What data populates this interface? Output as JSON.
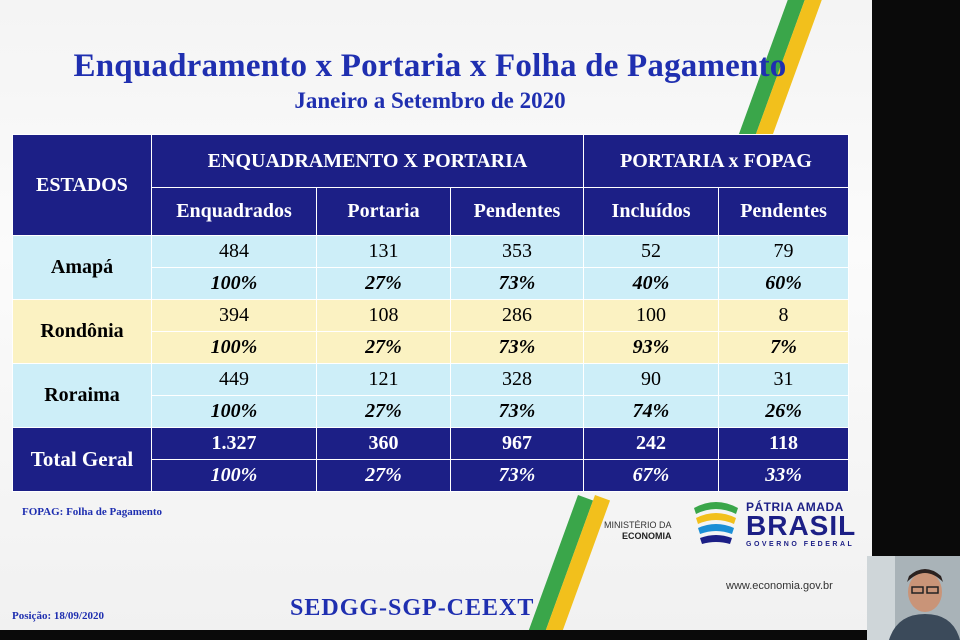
{
  "slide": {
    "title": "Enquadramento x Portaria x Folha de Pagamento",
    "subtitle": "Janeiro a Setembro de 2020",
    "footnote": "FOPAG: Folha de Pagamento",
    "position_date": "Posição: 18/09/2020",
    "code": "SEDGG-SGP-CEEXT",
    "ministry_line1": "MINISTÉRIO DA",
    "ministry_line2": "ECONOMIA",
    "logo_top": "PÁTRIA AMADA",
    "logo_main": "BRASIL",
    "logo_sub": "GOVERNO FEDERAL",
    "url": "www.economia.gov.br"
  },
  "table": {
    "states_header": "ESTADOS",
    "group1": "ENQUADRAMENTO X PORTARIA",
    "group2": "PORTARIA x FOPAG",
    "columns": [
      "Enquadrados",
      "Portaria",
      "Pendentes",
      "Incluídos",
      "Pendentes"
    ],
    "rows": [
      {
        "state": "Amapá",
        "values": [
          "484",
          "131",
          "353",
          "52",
          "79"
        ],
        "percents": [
          "100%",
          "27%",
          "73%",
          "40%",
          "60%"
        ]
      },
      {
        "state": "Rondônia",
        "values": [
          "394",
          "108",
          "286",
          "100",
          "8"
        ],
        "percents": [
          "100%",
          "27%",
          "73%",
          "93%",
          "7%"
        ]
      },
      {
        "state": "Roraima",
        "values": [
          "449",
          "121",
          "328",
          "90",
          "31"
        ],
        "percents": [
          "100%",
          "27%",
          "73%",
          "74%",
          "26%"
        ]
      }
    ],
    "total": {
      "state": "Total Geral",
      "values": [
        "1.327",
        "360",
        "967",
        "242",
        "118"
      ],
      "percents": [
        "100%",
        "27%",
        "73%",
        "67%",
        "33%"
      ]
    }
  },
  "colors": {
    "title_blue": "#1f2fb0",
    "header_navy": "#1c1f86",
    "row_blue": "#cdeef8",
    "row_yellow": "#fbf2c2",
    "stripe_green": "#3aa64a",
    "stripe_yellow": "#f2c01c"
  },
  "icons": {
    "logo": "brasil-flag-logo",
    "participant": "webcam-person"
  }
}
